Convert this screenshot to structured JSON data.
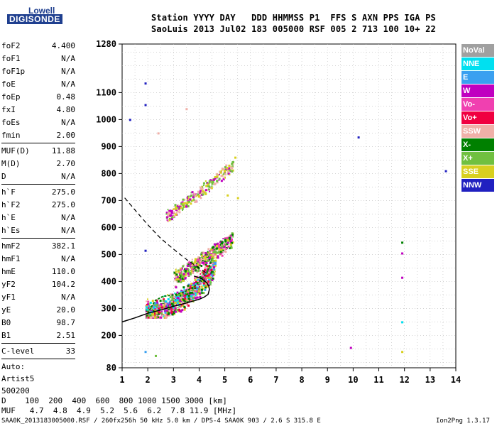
{
  "logo": {
    "top": "Lowell",
    "bottom": "DIGISONDE"
  },
  "header": {
    "line1": "Station YYYY DAY   DDD HHMMSS P1  FFS S AXN PPS IGA PS",
    "line2": "SaoLuis 2013 Jul02 183 005000 RSF 005 2 713 100 10+ 22"
  },
  "params": [
    {
      "label": "foF2",
      "value": "4.400",
      "sep": false
    },
    {
      "label": "foF1",
      "value": "N/A",
      "sep": false
    },
    {
      "label": "foF1p",
      "value": "N/A",
      "sep": false
    },
    {
      "label": "foE",
      "value": "N/A",
      "sep": false
    },
    {
      "label": "foEp",
      "value": "0.48",
      "sep": false
    },
    {
      "label": "fxI",
      "value": "4.80",
      "sep": false
    },
    {
      "label": "foEs",
      "value": "N/A",
      "sep": false
    },
    {
      "label": "fmin",
      "value": "2.00",
      "sep": true
    },
    {
      "label": "MUF(D)",
      "value": "11.88",
      "sep": false
    },
    {
      "label": "M(D)",
      "value": "2.70",
      "sep": false
    },
    {
      "label": "D",
      "value": "N/A",
      "sep": true
    },
    {
      "label": "h`F",
      "value": "275.0",
      "sep": false
    },
    {
      "label": "h`F2",
      "value": "275.0",
      "sep": false
    },
    {
      "label": "h`E",
      "value": "N/A",
      "sep": false
    },
    {
      "label": "h`Es",
      "value": "N/A",
      "sep": true
    },
    {
      "label": "hmF2",
      "value": "382.1",
      "sep": false
    },
    {
      "label": "hmF1",
      "value": "N/A",
      "sep": false
    },
    {
      "label": "hmE",
      "value": "110.0",
      "sep": false
    },
    {
      "label": "yF2",
      "value": "104.2",
      "sep": false
    },
    {
      "label": "yF1",
      "value": "N/A",
      "sep": false
    },
    {
      "label": "yE",
      "value": "20.0",
      "sep": false
    },
    {
      "label": "B0",
      "value": "98.7",
      "sep": false
    },
    {
      "label": "B1",
      "value": "2.51",
      "sep": true
    },
    {
      "label": "C-level",
      "value": "33",
      "sep": true
    }
  ],
  "auto": [
    "Auto:",
    "Artist5",
    "500200"
  ],
  "legend": [
    {
      "label": "NoVal",
      "color": "#a0a0a0"
    },
    {
      "label": "NNE",
      "color": "#00e0f0"
    },
    {
      "label": "E",
      "color": "#3aa0f0"
    },
    {
      "label": "W",
      "color": "#c000c0"
    },
    {
      "label": "Vo-",
      "color": "#f040b0"
    },
    {
      "label": "Vo+",
      "color": "#f00040"
    },
    {
      "label": "SSW",
      "color": "#f0b0a8"
    },
    {
      "label": "X-",
      "color": "#008000"
    },
    {
      "label": "X+",
      "color": "#70c040"
    },
    {
      "label": "SSE",
      "color": "#d8d020"
    },
    {
      "label": "NNW",
      "color": "#2020c0"
    }
  ],
  "footer": {
    "d_line": "D    100  200  400  600  800 1000 1500 3000 [km]",
    "muf_line": "MUF   4.7  4.8  4.9  5.2  5.6  6.2  7.8 11.9 [MHz]",
    "file_line": "SAA0K_2013183005000.RSF / 260fx256h 50 kHz 5.0 km / DPS-4 SAA0K 903 / 2.6 S 315.8 E",
    "version": "Ion2Png 1.3.17"
  },
  "chart_data": {
    "type": "scatter",
    "title": "",
    "xlabel": "",
    "ylabel": "",
    "xlim": [
      1,
      14
    ],
    "ylim": [
      80,
      1280
    ],
    "x_ticks": [
      "1",
      "2",
      "3",
      "4",
      "5",
      "6",
      "7",
      "8",
      "9",
      "10",
      "11",
      "12",
      "13",
      "14"
    ],
    "y_ticks": [
      {
        "value": 80,
        "label": "80"
      },
      {
        "value": 200,
        "label": "200"
      },
      {
        "value": 300,
        "label": "300"
      },
      {
        "value": 400,
        "label": "400"
      },
      {
        "value": 500,
        "label": "500"
      },
      {
        "value": 600,
        "label": "600"
      },
      {
        "value": 700,
        "label": "700"
      },
      {
        "value": 800,
        "label": "800"
      },
      {
        "value": 900,
        "label": "900"
      },
      {
        "value": 1000,
        "label": "1000"
      },
      {
        "value": 1100,
        "label": "1100"
      },
      {
        "value": 1280,
        "label": "1280"
      }
    ],
    "grid": true,
    "echo_clusters": [
      {
        "name": "F-trace",
        "freq": [
          1.9,
          4.6
        ],
        "height": [
          270,
          480
        ],
        "color_keys": [
          "W",
          "Vo-",
          "Vo+",
          "X-",
          "X+",
          "SSE",
          "SSW",
          "E",
          "NNE"
        ]
      },
      {
        "name": "F-trace upper",
        "freq": [
          3.0,
          5.3
        ],
        "height": [
          380,
          600
        ],
        "color_keys": [
          "W",
          "Vo-",
          "X-",
          "X+",
          "SSE",
          "SSW"
        ]
      },
      {
        "name": "second hop",
        "freq": [
          2.7,
          5.3
        ],
        "height": [
          600,
          850
        ],
        "color_keys": [
          "SSW",
          "SSE",
          "X+",
          "W"
        ]
      }
    ],
    "isolated_points": [
      {
        "x": 1.3,
        "y": 1000,
        "key": "NNW"
      },
      {
        "x": 1.9,
        "y": 1135,
        "key": "NNW"
      },
      {
        "x": 1.9,
        "y": 1055,
        "key": "NNW"
      },
      {
        "x": 1.9,
        "y": 515,
        "key": "NNW"
      },
      {
        "x": 1.9,
        "y": 140,
        "key": "E"
      },
      {
        "x": 2.3,
        "y": 125,
        "key": "X+"
      },
      {
        "x": 10.2,
        "y": 935,
        "key": "NNW"
      },
      {
        "x": 9.9,
        "y": 155,
        "key": "W"
      },
      {
        "x": 11.9,
        "y": 545,
        "key": "X-"
      },
      {
        "x": 11.9,
        "y": 505,
        "key": "W"
      },
      {
        "x": 11.9,
        "y": 415,
        "key": "W"
      },
      {
        "x": 11.9,
        "y": 250,
        "key": "NNE"
      },
      {
        "x": 11.9,
        "y": 140,
        "key": "SSE"
      },
      {
        "x": 13.6,
        "y": 810,
        "key": "NNW"
      },
      {
        "x": 5.1,
        "y": 720,
        "key": "SSE"
      },
      {
        "x": 5.5,
        "y": 710,
        "key": "SSE"
      },
      {
        "x": 5.4,
        "y": 860,
        "key": "SSE"
      },
      {
        "x": 3.5,
        "y": 1040,
        "key": "SSW"
      },
      {
        "x": 2.4,
        "y": 950,
        "key": "SSW"
      }
    ],
    "profile_solid": [
      [
        1,
        250
      ],
      [
        1.5,
        265
      ],
      [
        2,
        282
      ],
      [
        2.5,
        294
      ],
      [
        3,
        308
      ],
      [
        3.5,
        320
      ],
      [
        4,
        334
      ],
      [
        4.2,
        342
      ],
      [
        4.35,
        352
      ],
      [
        4.4,
        370
      ],
      [
        4.38,
        382
      ],
      [
        4.3,
        395
      ],
      [
        4.1,
        410
      ],
      [
        3.8,
        420
      ]
    ],
    "profile_dashed": [
      [
        1.1,
        710
      ],
      [
        1.5,
        665
      ],
      [
        2,
        610
      ],
      [
        2.5,
        560
      ],
      [
        3,
        520
      ],
      [
        3.5,
        482
      ],
      [
        4,
        450
      ],
      [
        4.3,
        430
      ]
    ],
    "fmin_trace": [
      [
        1.95,
        270
      ],
      [
        2.1,
        300
      ],
      [
        2.3,
        330
      ],
      [
        2.6,
        345
      ],
      [
        3,
        350
      ],
      [
        3.4,
        360
      ],
      [
        3.8,
        380
      ],
      [
        4.1,
        410
      ],
      [
        4.3,
        430
      ],
      [
        4.4,
        460
      ],
      [
        4.5,
        480
      ]
    ]
  }
}
